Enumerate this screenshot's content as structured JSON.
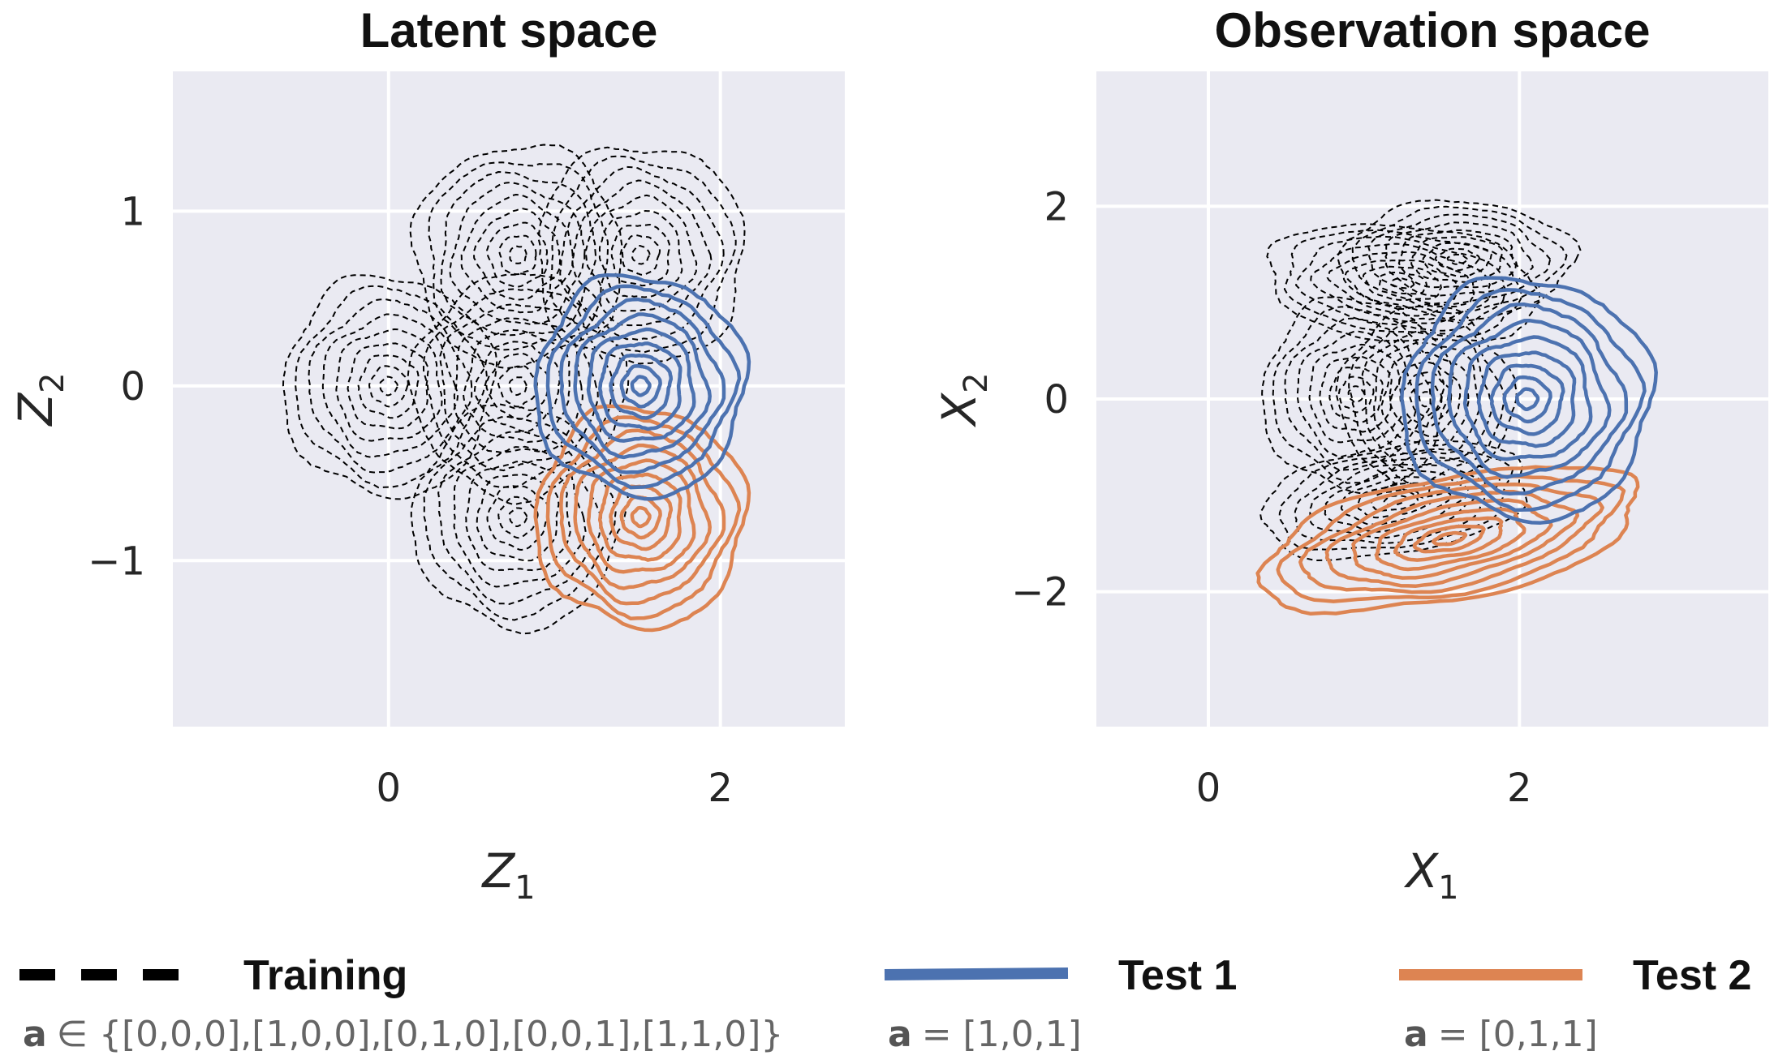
{
  "chart_data": [
    {
      "type": "contour",
      "title": "Latent space",
      "xlabel": "Z",
      "xlabel_sub": "1",
      "ylabel": "Z",
      "ylabel_sub": "2",
      "xlim": [
        -1.3,
        2.75
      ],
      "ylim": [
        -1.95,
        1.8
      ],
      "xticks": [
        0,
        2
      ],
      "xtick_labels": [
        "0",
        "2"
      ],
      "yticks": [
        -1,
        0,
        1
      ],
      "ytick_labels": [
        "−1",
        "0",
        "1"
      ],
      "grid": true,
      "background": "#eaeaf2",
      "series": [
        {
          "name": "Training",
          "style": "dashed",
          "color": "#000000",
          "components": [
            {
              "cx": 0.0,
              "cy": 0.0,
              "r": 0.63
            },
            {
              "cx": 0.78,
              "cy": 0.0,
              "r": 0.63
            },
            {
              "cx": 0.78,
              "cy": 0.75,
              "r": 0.63
            },
            {
              "cx": 1.52,
              "cy": 0.75,
              "r": 0.63
            },
            {
              "cx": 0.78,
              "cy": -0.75,
              "r": 0.63
            }
          ]
        },
        {
          "name": "Test 1",
          "style": "solid",
          "color": "#4c72b0",
          "components": [
            {
              "cx": 1.52,
              "cy": 0.0,
              "r": 0.63
            }
          ]
        },
        {
          "name": "Test 2",
          "style": "solid",
          "color": "#dd8452",
          "components": [
            {
              "cx": 1.52,
              "cy": -0.75,
              "r": 0.63
            }
          ]
        }
      ]
    },
    {
      "type": "contour",
      "title": "Observation space",
      "xlabel": "X",
      "xlabel_sub": "1",
      "ylabel": "X",
      "ylabel_sub": "2",
      "xlim": [
        -0.72,
        3.6
      ],
      "ylim": [
        -3.4,
        3.4
      ],
      "xticks": [
        0,
        2
      ],
      "xtick_labels": [
        "0",
        "2"
      ],
      "yticks": [
        -2,
        0,
        2
      ],
      "ytick_labels": [
        "−2",
        "0",
        "2"
      ],
      "grid": true,
      "background": "#eaeaf2",
      "series": [
        {
          "name": "Training",
          "style": "dashed",
          "color": "#000000",
          "components": [
            {
              "cx": 0.95,
              "cy": 0.05,
              "rx": 0.6,
              "ry": 1.0,
              "angle": 0
            },
            {
              "cx": 1.4,
              "cy": 0.0,
              "rx": 0.55,
              "ry": 0.95,
              "angle": 0
            },
            {
              "cx": 1.25,
              "cy": 1.2,
              "rx": 0.9,
              "ry": 0.6,
              "angle": -15
            },
            {
              "cx": 1.2,
              "cy": -1.05,
              "rx": 0.9,
              "ry": 0.55,
              "angle": 20
            },
            {
              "cx": 1.6,
              "cy": 1.45,
              "rx": 0.75,
              "ry": 0.6,
              "angle": 0
            }
          ]
        },
        {
          "name": "Test 1",
          "style": "solid",
          "color": "#4c72b0",
          "components": [
            {
              "cx": 2.05,
              "cy": 0.0,
              "rx": 0.8,
              "ry": 1.25,
              "angle": 0
            }
          ]
        },
        {
          "name": "Test 2",
          "style": "solid",
          "color": "#dd8452",
          "components": [
            {
              "cx": 1.55,
              "cy": -1.45,
              "rx": 1.3,
              "ry": 0.62,
              "angle": 22
            }
          ]
        }
      ]
    }
  ],
  "legend": {
    "items": [
      {
        "label": "Training",
        "style": "dashed",
        "color": "#000000",
        "sub_symbol": "a",
        "sub_text": "∈ {[0,0,0],[1,0,0],[0,1,0],[0,0,1],[1,1,0]}"
      },
      {
        "label": "Test 1",
        "style": "solid",
        "color": "#4c72b0",
        "sub_symbol": "a",
        "sub_text": "= [1,0,1]"
      },
      {
        "label": "Test 2",
        "style": "solid",
        "color": "#dd8452",
        "sub_symbol": "a",
        "sub_text": "= [0,1,1]"
      }
    ]
  }
}
